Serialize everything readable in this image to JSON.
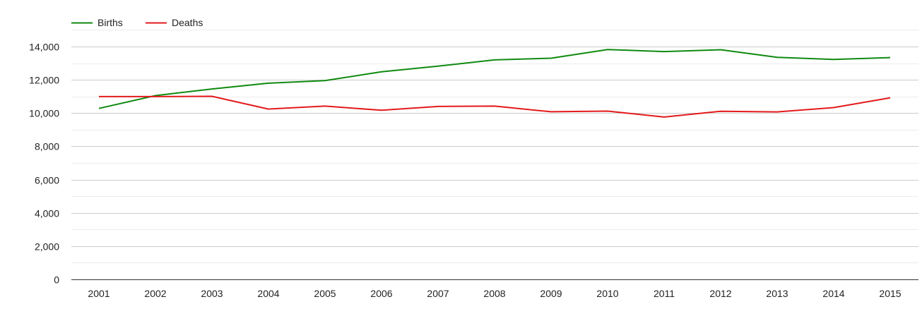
{
  "chart_data": {
    "type": "line",
    "title": "",
    "xlabel": "",
    "ylabel": "",
    "categories": [
      "2001",
      "2002",
      "2003",
      "2004",
      "2005",
      "2006",
      "2007",
      "2008",
      "2009",
      "2010",
      "2011",
      "2012",
      "2013",
      "2014",
      "2015"
    ],
    "ylim": [
      0,
      14000
    ],
    "y_ticks": [
      0,
      2000,
      4000,
      6000,
      8000,
      10000,
      12000,
      14000
    ],
    "y_tick_labels": [
      "0",
      "2,000",
      "4,000",
      "6,000",
      "8,000",
      "10,000",
      "12,000",
      "14,000"
    ],
    "grid": true,
    "legend_position": "top-left",
    "series": [
      {
        "name": "Births",
        "color": "#108a10",
        "values": [
          10280,
          11050,
          11450,
          11800,
          11950,
          12480,
          12820,
          13200,
          13300,
          13820,
          13700,
          13810,
          13350,
          13230,
          13340
        ]
      },
      {
        "name": "Deaths",
        "color": "#e31a1c",
        "values": [
          10990,
          10990,
          11010,
          10240,
          10420,
          10170,
          10400,
          10420,
          10080,
          10120,
          9760,
          10110,
          10070,
          10330,
          10920
        ]
      }
    ]
  }
}
